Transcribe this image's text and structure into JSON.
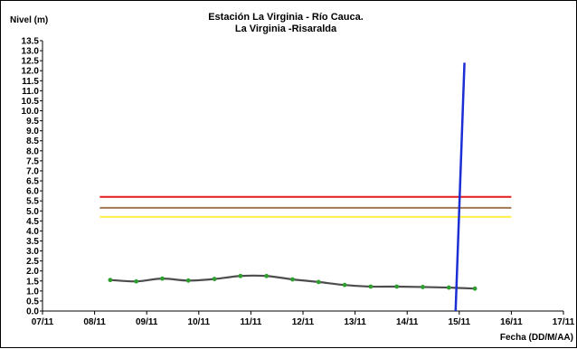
{
  "chart_data": {
    "type": "line",
    "title": [
      "Estación La Virginia  - Río Cauca.",
      "La Virginia -Risaralda"
    ],
    "ylabel": "Nivel (m)",
    "xlabel": "Fecha (DD/M/AA)",
    "ylim": [
      0,
      13.5
    ],
    "y_step": 0.5,
    "y_ticks": [
      "0.0",
      "0.5",
      "1.0",
      "1.5",
      "2.0",
      "2.5",
      "3.0",
      "3.5",
      "4.0",
      "4.5",
      "5.0",
      "5.5",
      "6.0",
      "6.5",
      "7.0",
      "7.5",
      "8.0",
      "8.5",
      "9.0",
      "9.5",
      "10.0",
      "10.5",
      "11.0",
      "11.5",
      "12.0",
      "12.5",
      "13.0",
      "13.5"
    ],
    "x_ticks": [
      "07/11",
      "08/11",
      "09/11",
      "10/11",
      "11/11",
      "12/11",
      "13/11",
      "14/11",
      "15/11",
      "16/11",
      "17/11"
    ],
    "xlim": [
      0,
      10
    ],
    "grid": false,
    "legend": "none",
    "series": [
      {
        "color": "#4d4d4d",
        "marker_color": "#2e9e2e",
        "x": [
          1.3,
          1.8,
          2.3,
          2.8,
          3.3,
          3.8,
          4.3,
          4.8,
          5.3,
          5.8,
          6.3,
          6.8,
          7.3,
          7.8,
          8.3
        ],
        "values": [
          1.55,
          1.48,
          1.62,
          1.52,
          1.6,
          1.75,
          1.75,
          1.58,
          1.45,
          1.3,
          1.22,
          1.22,
          1.2,
          1.17,
          1.12
        ]
      }
    ],
    "reference_lines": [
      {
        "color": "#e41a1c",
        "y": 5.7,
        "x": [
          1.1,
          9.0
        ]
      },
      {
        "color": "#a07850",
        "y": 5.15,
        "x": [
          1.1,
          9.0
        ]
      },
      {
        "color": "#ffee44",
        "y": 4.7,
        "x": [
          1.1,
          9.0
        ]
      }
    ],
    "marker_line": {
      "color": "#1a2ed4",
      "x_bottom": 7.93,
      "x_top": 8.1,
      "y_top": 12.4
    }
  }
}
